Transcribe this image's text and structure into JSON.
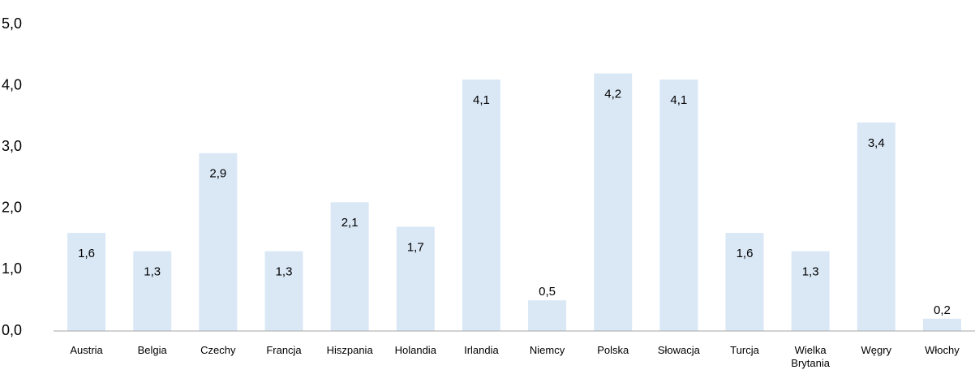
{
  "chart_data": {
    "type": "bar",
    "categories": [
      "Austria",
      "Belgia",
      "Czechy",
      "Francja",
      "Hiszpania",
      "Holandia",
      "Irlandia",
      "Niemcy",
      "Polska",
      "Słowacja",
      "Turcja",
      "Wielka Brytania",
      "Węgry",
      "Włochy"
    ],
    "values": [
      1.6,
      1.3,
      2.9,
      1.3,
      2.1,
      1.7,
      4.1,
      0.5,
      4.2,
      4.1,
      1.6,
      1.3,
      3.4,
      0.2
    ],
    "value_labels": [
      "1,6",
      "1,3",
      "2,9",
      "1,3",
      "2,1",
      "1,7",
      "4,1",
      "0,5",
      "4,2",
      "4,1",
      "1,6",
      "1,3",
      "3,4",
      "0,2"
    ],
    "color": "#dae8f6",
    "ylim": [
      0,
      5
    ],
    "yticks": [
      {
        "value": 0,
        "label": "0,0"
      },
      {
        "value": 1,
        "label": "1,0"
      },
      {
        "value": 2,
        "label": "2,0"
      },
      {
        "value": 3,
        "label": "3,0"
      },
      {
        "value": 4,
        "label": "4,0"
      },
      {
        "value": 5,
        "label": "5,0"
      }
    ],
    "grid": false
  }
}
